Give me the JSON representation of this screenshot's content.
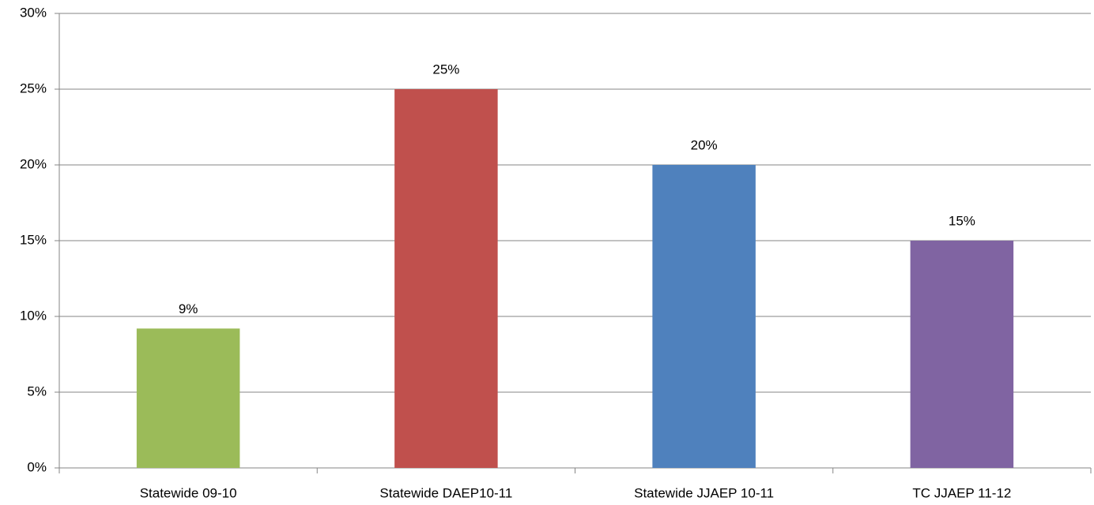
{
  "chart_data": {
    "type": "bar",
    "categories": [
      "Statewide 09-10",
      "Statewide DAEP10-11",
      "Statewide JJAEP 10-11",
      "TC JJAEP 11-12"
    ],
    "values": [
      9.2,
      25,
      20,
      15
    ],
    "value_labels": [
      "9%",
      "25%",
      "20%",
      "15%"
    ],
    "colors": [
      "#9bbb59",
      "#c0504d",
      "#4f81bd",
      "#8064a2"
    ],
    "ylim": [
      0,
      30
    ],
    "yticks": [
      {
        "value": 0,
        "label": "0%"
      },
      {
        "value": 5,
        "label": "5%"
      },
      {
        "value": 10,
        "label": "10%"
      },
      {
        "value": 15,
        "label": "15%"
      },
      {
        "value": 20,
        "label": "20%"
      },
      {
        "value": 25,
        "label": "25%"
      },
      {
        "value": 30,
        "label": "30%"
      }
    ],
    "grid": true
  }
}
